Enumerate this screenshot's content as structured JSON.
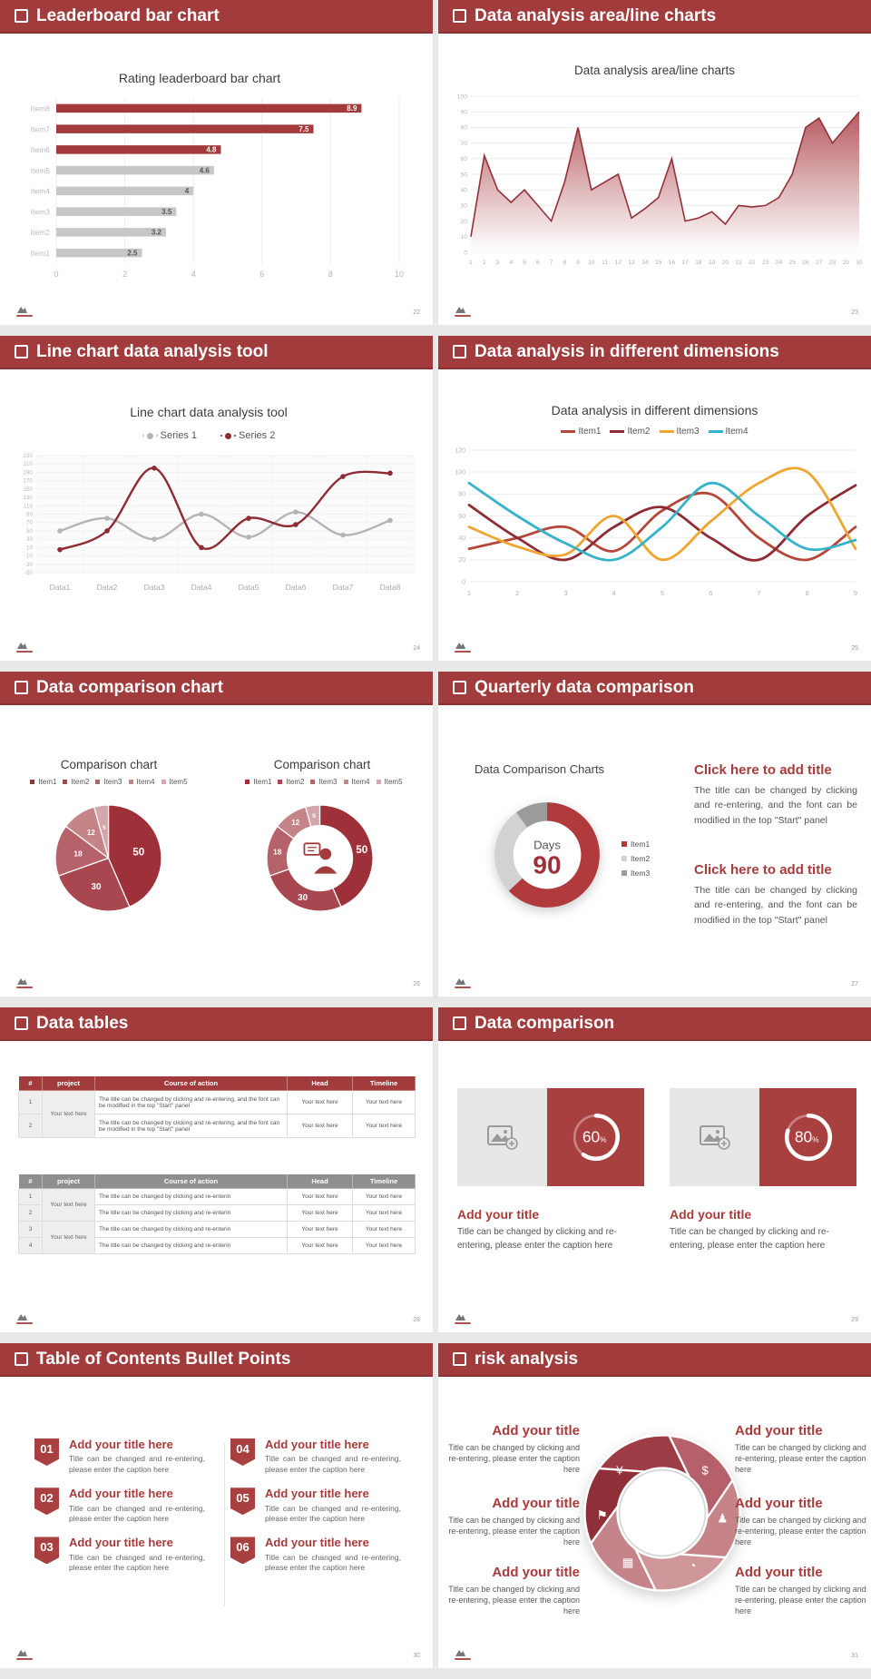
{
  "page": {
    "background": "#e8e8e8",
    "accent": "#a23b3b"
  },
  "slides": [
    {
      "title": "Leaderboard bar chart",
      "page_num": "22"
    },
    {
      "title": "Data analysis area/line charts",
      "page_num": "23"
    },
    {
      "title": "Line chart data analysis tool",
      "page_num": "24"
    },
    {
      "title": "Data analysis in different dimensions",
      "page_num": "25"
    },
    {
      "title": "Data comparison chart",
      "page_num": "26"
    },
    {
      "title": "Quarterly data comparison",
      "page_num": "27"
    },
    {
      "title": "Data tables",
      "page_num": "28"
    },
    {
      "title": "Data comparison",
      "page_num": "29"
    },
    {
      "title": "Table of Contents Bullet Points",
      "page_num": "30"
    },
    {
      "title": "risk analysis",
      "page_num": "31"
    }
  ],
  "chart_data": [
    {
      "type": "bar",
      "orientation": "horizontal",
      "title": "Rating leaderboard bar chart",
      "categories": [
        "Item1",
        "Item2",
        "Item3",
        "Item4",
        "Item5",
        "Item6",
        "Item7",
        "Item8"
      ],
      "values": [
        2.5,
        3.2,
        3.5,
        4,
        4.6,
        4.8,
        7.5,
        8.9
      ],
      "bar_colors": [
        "#c7c7c7",
        "#c7c7c7",
        "#c7c7c7",
        "#c7c7c7",
        "#c7c7c7",
        "#a33b3c",
        "#a33b3c",
        "#a33b3c"
      ],
      "xlim": [
        0,
        10
      ],
      "xticks": [
        0,
        2,
        4,
        6,
        8,
        10
      ]
    },
    {
      "type": "area",
      "title": "Data analysis area/line charts",
      "x": [
        1,
        2,
        3,
        4,
        5,
        6,
        7,
        8,
        9,
        10,
        11,
        12,
        13,
        14,
        15,
        16,
        17,
        18,
        19,
        20,
        21,
        22,
        23,
        24,
        25,
        26,
        27,
        28,
        29,
        30
      ],
      "values": [
        10,
        62,
        40,
        32,
        40,
        30,
        20,
        45,
        80,
        40,
        45,
        50,
        22,
        28,
        35,
        60,
        20,
        22,
        26,
        18,
        30,
        29,
        30,
        35,
        50,
        80,
        86,
        70,
        80,
        90
      ],
      "ylim": [
        0,
        100
      ],
      "ytick_step": 10,
      "line_color": "#943138",
      "fill_from": "#b25258",
      "fill_to": "#ffffff"
    },
    {
      "type": "line",
      "title": "Line chart data analysis tool",
      "categories": [
        "Data1",
        "Data2",
        "Data3",
        "Data4",
        "Data5",
        "Data6",
        "Data7",
        "Data8"
      ],
      "series": [
        {
          "name": "Series 1",
          "color": "#b5b5b5",
          "values": [
            50,
            80,
            30,
            90,
            35,
            95,
            40,
            75
          ]
        },
        {
          "name": "Series 2",
          "color": "#8e2b35",
          "values": [
            5,
            50,
            200,
            10,
            80,
            65,
            180,
            188
          ]
        }
      ],
      "ylim": [
        -50,
        230
      ],
      "ytick_step": 20,
      "markers": true,
      "legend_position": "top"
    },
    {
      "type": "line",
      "title": "Data analysis in different dimensions",
      "x": [
        1,
        2,
        3,
        4,
        5,
        6,
        7,
        8,
        9
      ],
      "series": [
        {
          "name": "Item1",
          "color": "#b5473a",
          "values": [
            30,
            40,
            50,
            28,
            65,
            80,
            40,
            20,
            50
          ]
        },
        {
          "name": "Item2",
          "color": "#8e2b35",
          "values": [
            70,
            40,
            20,
            50,
            68,
            40,
            20,
            60,
            88
          ]
        },
        {
          "name": "Item3",
          "color": "#efa52f",
          "values": [
            50,
            32,
            25,
            60,
            20,
            55,
            90,
            100,
            30
          ]
        },
        {
          "name": "Item4",
          "color": "#35b3c9",
          "values": [
            90,
            60,
            35,
            20,
            50,
            90,
            60,
            30,
            38
          ]
        }
      ],
      "ylim": [
        0,
        120
      ],
      "ytick_step": 20,
      "markers": false,
      "legend_position": "top"
    },
    {
      "type": "pie",
      "title": "Comparison chart",
      "labels": [
        "Item1",
        "Item2",
        "Item3",
        "Item4",
        "Item5"
      ],
      "values": [
        50,
        30,
        18,
        12,
        5
      ],
      "colors": [
        "#9e3039",
        "#a94750",
        "#b5626a",
        "#c48488",
        "#d4a6a9"
      ]
    },
    {
      "type": "donut",
      "title": "Comparison chart",
      "labels": [
        "Item1",
        "Item2",
        "Item3",
        "Item4",
        "Item5"
      ],
      "values": [
        50,
        30,
        18,
        12,
        5
      ],
      "colors": [
        "#9e3039",
        "#a94750",
        "#b5626a",
        "#c48488",
        "#d4a6a9"
      ],
      "center_icon": "presenter-person-icon"
    },
    {
      "type": "donut-gauge",
      "center_label": "Days",
      "center_value": "90",
      "legend": [
        "Item1",
        "Item2",
        "Item3"
      ],
      "segment_values": [
        63,
        27,
        10
      ],
      "segment_colors": [
        "#b03a3c",
        "#d2d2d2",
        "#9b9b9b"
      ]
    },
    {
      "type": "progress-ring",
      "value": 60,
      "suffix": "%",
      "ring_color": "#ffffff",
      "bg": "#a8403f"
    },
    {
      "type": "progress-ring",
      "value": 80,
      "suffix": "%",
      "ring_color": "#ffffff",
      "bg": "#a8403f"
    }
  ],
  "slide6": {
    "chart_label": "Data Comparison Charts",
    "blocks": [
      {
        "title": "Click here to add title",
        "body": "The title can be changed by clicking and re-entering, and the font can be modified in the top \"Start\" panel"
      },
      {
        "title": "Click here to add title",
        "body": "The title can be changed by clicking and re-entering, and the font can be modified in the top \"Start\" panel"
      }
    ]
  },
  "tables": {
    "t1": {
      "header_bg": "#a23b3b",
      "columns": [
        "#",
        "project",
        "Course of action",
        "Head",
        "Timeline"
      ],
      "rows": [
        [
          "1",
          {
            "text": "Your text here",
            "span": 2
          },
          "The title can be changed by clicking and re-entering, and the font can be modified in the top \"Start\" panel",
          "Your text here",
          "Your text here"
        ],
        [
          "2",
          null,
          "The title can be changed by clicking and re-entering, and the font can be modified in the top \"Start\" panel",
          "Your text here",
          "Your text here"
        ]
      ]
    },
    "t2": {
      "header_bg": "#8f8f8f",
      "columns": [
        "#",
        "project",
        "Course of action",
        "Head",
        "Timeline"
      ],
      "rows": [
        [
          "1",
          {
            "text": "Your text here",
            "span": 2
          },
          "The title can be changed by clicking and re-enterin",
          "Your text here",
          "Your text here"
        ],
        [
          "2",
          null,
          "The title can be changed by clicking and re-enterin",
          "Your text here",
          "Your text here"
        ],
        [
          "3",
          {
            "text": "Your text here",
            "span": 2
          },
          "The title can be changed by clicking and re-enterin",
          "Your text here",
          "Your text here"
        ],
        [
          "4",
          null,
          "The title can be changed by clicking and re-enterin",
          "Your text here",
          "Your text here"
        ]
      ]
    }
  },
  "slide8": {
    "cards": [
      {
        "title": "Add your title",
        "body": "Title can be changed by clicking and re-entering, please enter the caption here"
      },
      {
        "title": "Add your title",
        "body": "Title can be changed by clicking and re-entering, please enter the caption here"
      }
    ]
  },
  "toc": {
    "items": [
      {
        "num": "01",
        "title": "Add your title here",
        "body": "Title can be changed and re-entering, please enter the caption here"
      },
      {
        "num": "02",
        "title": "Add your title here",
        "body": "Title can be changed and re-entering, please enter the caption here"
      },
      {
        "num": "03",
        "title": "Add your title here",
        "body": "Title can be changed and re-entering, please enter the caption here"
      },
      {
        "num": "04",
        "title": "Add your title here",
        "body": "Title can be changed and re-entering, please enter the caption here"
      },
      {
        "num": "05",
        "title": "Add your title here",
        "body": "Title can be changed and re-entering, please enter the caption here"
      },
      {
        "num": "06",
        "title": "Add your title here",
        "body": "Title can be changed and re-entering, please enter the caption here"
      }
    ]
  },
  "risk": {
    "items": [
      {
        "title": "Add your title",
        "body": "Title can be changed by clicking and re-entering, please enter the caption here"
      },
      {
        "title": "Add your title",
        "body": "Title can be changed by clicking and re-entering, please enter the caption here"
      },
      {
        "title": "Add your title",
        "body": "Title can be changed by clicking and re-entering, please enter the caption here"
      },
      {
        "title": "Add your title",
        "body": "Title can be changed by clicking and re-entering, please enter the caption here"
      },
      {
        "title": "Add your title",
        "body": "Title can be changed by clicking and re-entering, please enter the caption here"
      },
      {
        "title": "Add your title",
        "body": "Title can be changed by clicking and re-entering, please enter the caption here"
      }
    ],
    "icons": [
      {
        "name": "money-bag-icon",
        "glyph": "¥",
        "angle": 315
      },
      {
        "name": "coins-icon",
        "glyph": "$",
        "angle": 45
      },
      {
        "name": "people-icon",
        "glyph": "♟",
        "angle": 95
      },
      {
        "name": "pie-chart-icon",
        "glyph": "◔",
        "angle": 150
      },
      {
        "name": "building-icon",
        "glyph": "▦",
        "angle": 215
      },
      {
        "name": "loss-flag-icon",
        "glyph": "⚑",
        "angle": 268
      }
    ],
    "blade_colors": [
      "#8f2f37",
      "#9d3c44",
      "#b5606a",
      "#c68489",
      "#cf979a",
      "#c5848a"
    ]
  }
}
